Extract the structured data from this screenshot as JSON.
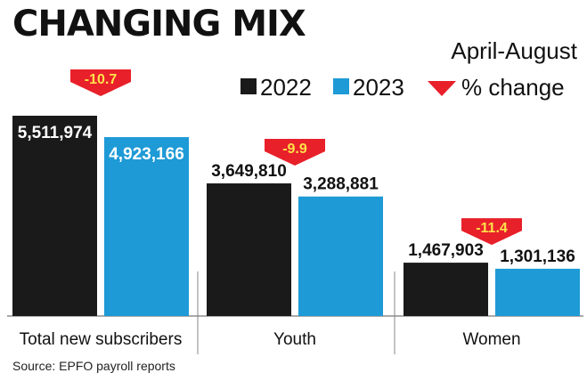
{
  "title": "CHANGING MIX",
  "source": "Source: EPFO payroll reports",
  "legend": {
    "items": [
      {
        "label": "2022",
        "color": "#1a1a1a"
      },
      {
        "label": "2023",
        "color": "#1e9ad6"
      }
    ],
    "change_title": "April-August",
    "change_label": "% change",
    "change_color": "#e8202a"
  },
  "chart_data": {
    "type": "bar",
    "categories": [
      "Total new subscribers",
      "Youth",
      "Women"
    ],
    "series": [
      {
        "name": "2022",
        "values": [
          5511974,
          3649810,
          1467903
        ],
        "labels": [
          "5,511,974",
          "3,649,810",
          "1,467,903"
        ]
      },
      {
        "name": "2023",
        "values": [
          4923166,
          3288881,
          1301136
        ],
        "labels": [
          "4,923,166",
          "3,288,881",
          "1,301,136"
        ]
      }
    ],
    "pct_change": [
      -10.7,
      -9.9,
      -11.4
    ],
    "pct_change_labels": [
      "-10.7",
      "-9.9",
      "-11.4"
    ],
    "ylim": [
      0,
      5511974
    ],
    "grid": false
  }
}
